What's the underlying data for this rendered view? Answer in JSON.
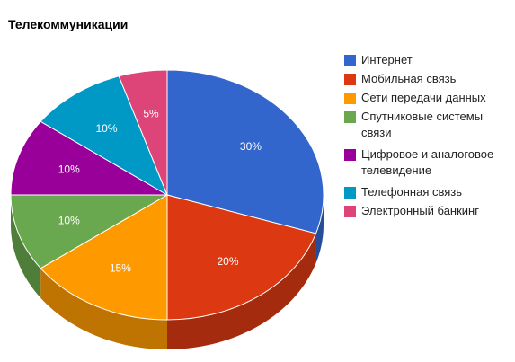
{
  "chart_title": "Телекоммуникации",
  "chart_data": {
    "type": "pie",
    "title": "Телекоммуникации",
    "legend_position": "right",
    "slices": [
      {
        "name": "Интернет",
        "value": 30,
        "label": "30%",
        "color": "#3366cc",
        "side_color": "#264d99"
      },
      {
        "name": "Мобильная связь",
        "value": 20,
        "label": "20%",
        "color": "#dc3912",
        "side_color": "#a52b0e"
      },
      {
        "name": "Сети передачи данных",
        "value": 15,
        "label": "15%",
        "color": "#ff9900",
        "side_color": "#bf7300"
      },
      {
        "name": "Спутниковые системы связи",
        "value": 10,
        "label": "10%",
        "color": "#6aa84f",
        "side_color": "#4f7e3b"
      },
      {
        "name": "Цифровое и аналоговое телевидение",
        "value": 10,
        "label": "10%",
        "color": "#990099",
        "side_color": "#730073"
      },
      {
        "name": "Телефонная связь",
        "value": 10,
        "label": "10%",
        "color": "#0099c6",
        "side_color": "#007395"
      },
      {
        "name": "Электронный банкинг",
        "value": 5,
        "label": "5%",
        "color": "#dd4477",
        "side_color": "#a63359"
      }
    ]
  }
}
